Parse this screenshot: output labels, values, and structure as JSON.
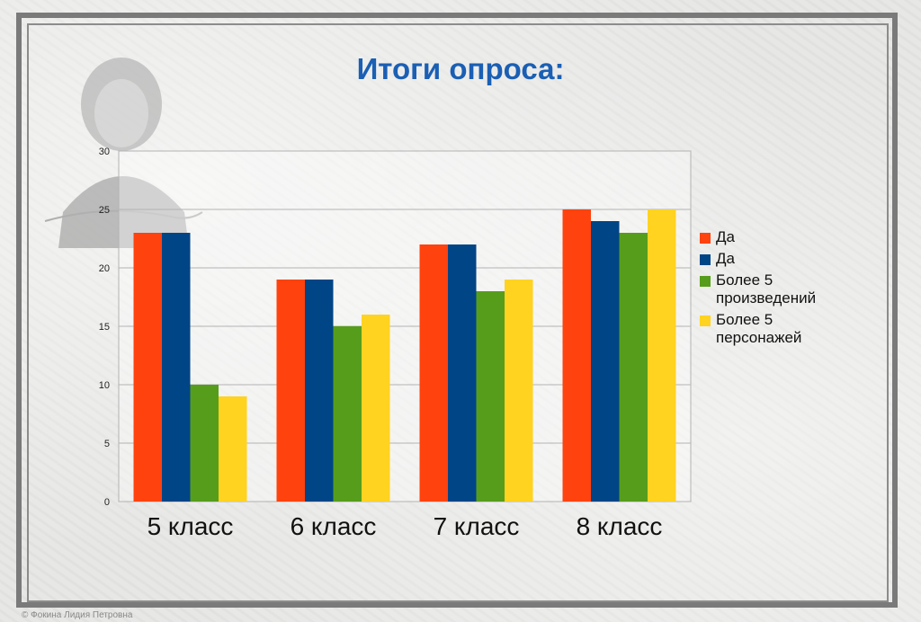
{
  "slide": {
    "title": "Итоги опроса:",
    "footer": "© Фокина Лидия Петровна"
  },
  "colors": {
    "title": "#1a5fb4"
  },
  "chart_data": {
    "type": "bar",
    "categories": [
      "5 класс",
      "6 класс",
      "7 класс",
      "8 класс"
    ],
    "series": [
      {
        "name": "Да",
        "color": "#ff420e",
        "values": [
          23,
          19,
          22,
          25
        ]
      },
      {
        "name": "Да",
        "color": "#004586",
        "values": [
          23,
          19,
          22,
          24
        ]
      },
      {
        "name": "Более 5 произведений",
        "color": "#579d1c",
        "values": [
          10,
          15,
          18,
          23
        ]
      },
      {
        "name": "Более 5 персонажей",
        "color": "#ffd320",
        "values": [
          9,
          16,
          19,
          25
        ]
      }
    ],
    "ylim": [
      0,
      30
    ],
    "yticks": [
      "0",
      "5",
      "10",
      "15",
      "20",
      "25",
      "30"
    ],
    "grid": true,
    "legend": "right",
    "title": "",
    "xlabel": "",
    "ylabel": ""
  }
}
